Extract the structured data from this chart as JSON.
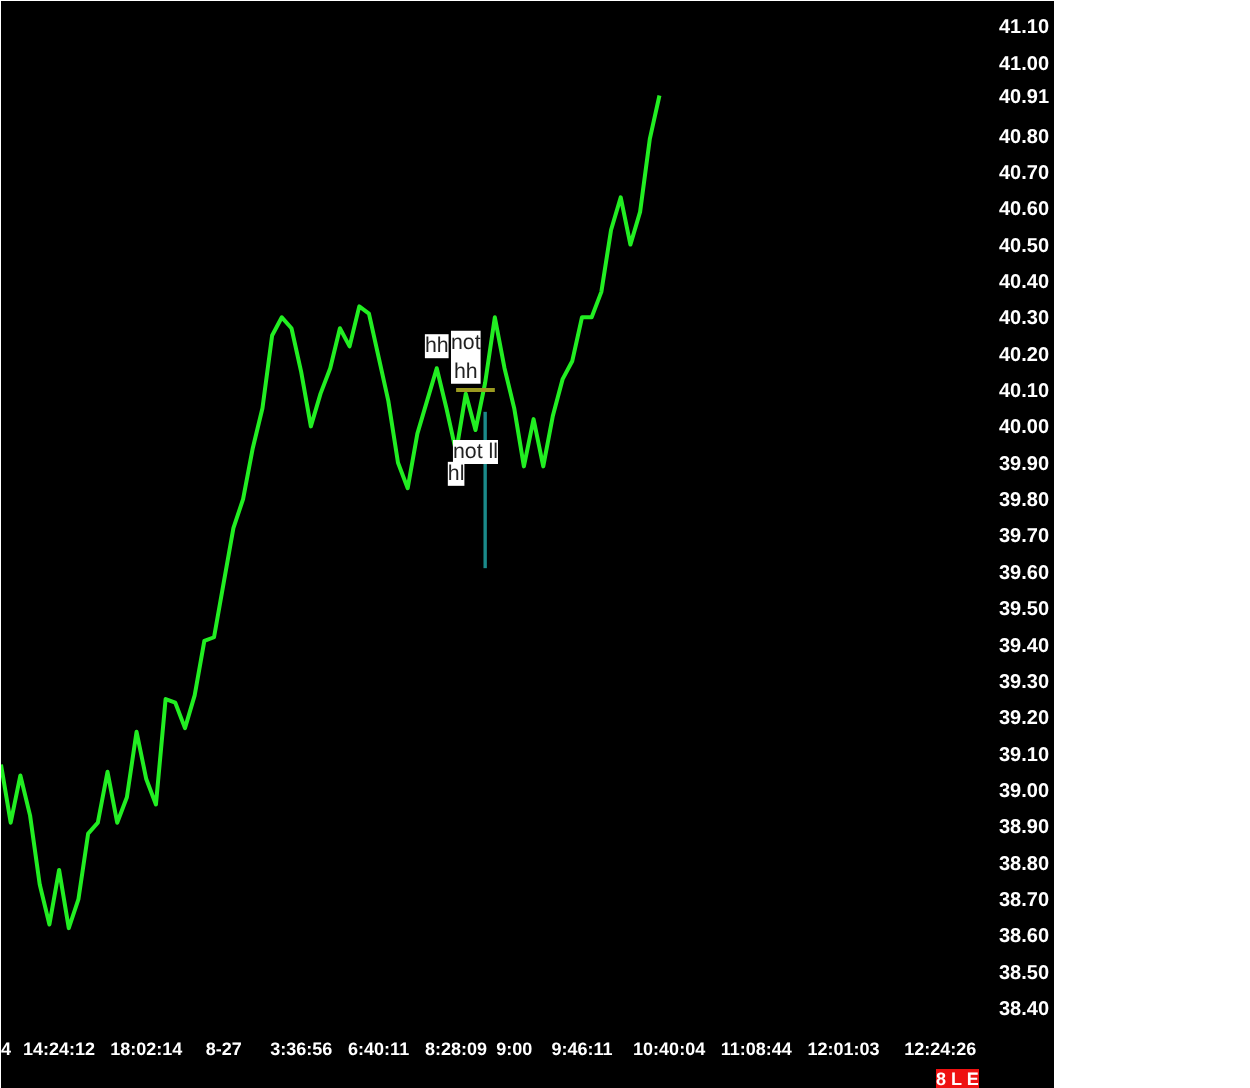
{
  "chart_data": {
    "type": "line",
    "categories": [
      "4",
      null,
      null,
      null,
      null,
      null,
      "14:24:12",
      null,
      null,
      null,
      null,
      null,
      null,
      null,
      null,
      "18:02:14",
      null,
      null,
      null,
      null,
      null,
      null,
      null,
      "8-27",
      null,
      null,
      null,
      null,
      null,
      null,
      null,
      "3:36:56",
      null,
      null,
      null,
      null,
      null,
      null,
      null,
      "6:40:11",
      null,
      null,
      null,
      null,
      null,
      null,
      null,
      "8:28:09",
      null,
      null,
      null,
      null,
      null,
      "9:00",
      null,
      null,
      null,
      null,
      null,
      null,
      "9:46:11",
      null,
      null,
      null,
      null,
      null,
      null,
      null,
      null,
      "10:40:04",
      null,
      null,
      null,
      null,
      null,
      null,
      null,
      null,
      "11:08:44",
      null,
      null,
      null,
      null,
      null,
      null,
      null,
      null,
      "12:01:03",
      null,
      null,
      null,
      null,
      null,
      null,
      null,
      null,
      null,
      "12:24:26",
      null,
      null,
      null
    ],
    "series": [
      {
        "color": "#22ee22",
        "values": [
          39.07,
          38.91,
          39.04,
          38.93,
          38.74,
          38.63,
          38.78,
          38.62,
          38.7,
          38.88,
          38.91,
          39.05,
          38.91,
          38.98,
          39.16,
          39.03,
          38.96,
          39.25,
          39.24,
          39.17,
          39.26,
          39.41,
          39.42,
          39.57,
          39.72,
          39.8,
          39.94,
          40.05,
          40.25,
          40.3,
          40.27,
          40.15,
          40.0,
          40.09,
          40.16,
          40.27,
          40.22,
          40.33,
          40.31,
          40.19,
          40.07,
          39.9,
          39.83,
          39.98,
          40.07,
          40.16,
          40.05,
          39.93,
          40.09,
          39.99,
          40.12,
          40.3,
          40.16,
          40.05,
          39.89,
          40.02,
          39.89,
          40.03,
          40.13,
          40.18,
          40.3,
          40.3,
          40.37,
          40.54,
          40.63,
          40.5,
          40.59,
          40.79,
          40.91,
          null,
          null,
          null,
          null,
          null,
          null,
          null,
          null,
          null,
          null,
          null,
          null,
          null,
          null,
          null,
          null,
          null,
          null,
          null,
          null,
          null,
          null,
          null,
          null,
          null,
          null,
          null,
          null,
          null,
          null,
          null,
          null
        ],
        "value_labels": [
          null,
          null,
          null,
          null,
          null,
          null,
          null,
          null,
          null,
          null,
          null,
          null,
          null,
          null,
          null,
          null,
          null,
          null,
          null,
          null,
          null,
          null,
          null,
          null,
          null,
          null,
          null,
          null,
          null,
          null,
          null,
          null,
          null,
          null,
          null,
          null,
          null,
          null,
          null,
          null,
          null,
          null,
          null,
          null,
          null,
          "hh",
          null,
          "hl",
          "not\nhh",
          "not ll",
          null,
          null,
          null,
          null,
          null,
          null,
          null,
          null,
          null,
          null,
          null,
          null,
          null,
          null,
          null,
          null,
          null,
          null,
          null,
          null,
          null,
          null,
          null,
          null,
          null,
          null,
          null,
          null,
          null,
          null,
          null,
          null,
          null,
          null,
          null,
          null,
          null,
          null,
          null,
          null,
          null,
          null,
          null,
          null,
          null,
          null,
          null,
          null,
          null,
          null,
          null
        ]
      },
      {
        "color": "#9a9a20",
        "values": [
          null,
          null,
          null,
          null,
          null,
          null,
          null,
          null,
          null,
          null,
          null,
          null,
          null,
          null,
          null,
          null,
          null,
          null,
          null,
          null,
          null,
          null,
          null,
          null,
          null,
          null,
          null,
          null,
          null,
          null,
          null,
          null,
          null,
          null,
          null,
          null,
          null,
          null,
          null,
          null,
          null,
          null,
          null,
          null,
          null,
          null,
          null,
          40.1,
          40.1,
          40.1,
          40.1,
          40.1,
          null,
          null,
          null,
          null,
          null,
          null,
          null,
          null,
          null,
          null,
          null,
          null,
          null,
          null,
          null,
          null,
          null,
          null,
          null,
          null,
          null,
          null,
          null,
          null,
          null,
          null,
          null,
          null,
          null,
          null,
          null,
          null,
          null,
          null,
          null,
          null,
          null,
          null,
          null,
          null,
          null,
          null,
          null,
          null,
          null,
          null,
          null,
          null,
          null
        ]
      },
      {
        "type": "bar",
        "color": "#1a8a8a",
        "values": [
          null,
          null,
          null,
          null,
          null,
          null,
          null,
          null,
          null,
          null,
          null,
          null,
          null,
          null,
          null,
          null,
          null,
          null,
          null,
          null,
          null,
          null,
          null,
          null,
          null,
          null,
          null,
          null,
          null,
          null,
          null,
          null,
          null,
          null,
          null,
          null,
          null,
          null,
          null,
          null,
          null,
          null,
          null,
          null,
          null,
          null,
          null,
          null,
          null,
          null,
          0.43,
          null,
          null,
          null,
          null,
          null,
          null,
          null,
          null,
          null,
          null,
          null,
          null,
          null,
          null,
          null,
          null,
          null,
          null,
          null,
          null,
          null,
          null,
          null,
          null,
          null,
          null,
          null,
          null,
          null,
          null,
          null,
          null,
          null,
          null,
          null,
          null,
          null,
          null,
          null,
          null,
          null,
          null,
          null,
          null,
          null,
          null,
          null,
          null,
          null,
          null
        ],
        "base": [
          null,
          null,
          null,
          null,
          null,
          null,
          null,
          null,
          null,
          null,
          null,
          null,
          null,
          null,
          null,
          null,
          null,
          null,
          null,
          null,
          null,
          null,
          null,
          null,
          null,
          null,
          null,
          null,
          null,
          null,
          null,
          null,
          null,
          null,
          null,
          null,
          null,
          null,
          null,
          null,
          null,
          null,
          null,
          null,
          null,
          null,
          null,
          null,
          null,
          null,
          39.61,
          null,
          null,
          null,
          null,
          null,
          null,
          null,
          null,
          null,
          null,
          null,
          null,
          null,
          null,
          null,
          null,
          null,
          null,
          null,
          null,
          null,
          null,
          null,
          null,
          null,
          null,
          null,
          null,
          null,
          null,
          null,
          null,
          null,
          null,
          null,
          null,
          null,
          null,
          null,
          null,
          null,
          null,
          null,
          null,
          null,
          null,
          null,
          null,
          null,
          null
        ]
      }
    ],
    "ylim": [
      38.37,
      41.17
    ],
    "yticks": [
      {
        "value": 38.4,
        "label": "38.40"
      },
      {
        "value": 38.5,
        "label": "38.50"
      },
      {
        "value": 38.6,
        "label": "38.60"
      },
      {
        "value": 38.7,
        "label": "38.70"
      },
      {
        "value": 38.8,
        "label": "38.80"
      },
      {
        "value": 38.9,
        "label": "38.90"
      },
      {
        "value": 39.0,
        "label": "39.00"
      },
      {
        "value": 39.1,
        "label": "39.10"
      },
      {
        "value": 39.2,
        "label": "39.20"
      },
      {
        "value": 39.3,
        "label": "39.30"
      },
      {
        "value": 39.4,
        "label": "39.40"
      },
      {
        "value": 39.5,
        "label": "39.50"
      },
      {
        "value": 39.6,
        "label": "39.60"
      },
      {
        "value": 39.7,
        "label": "39.70"
      },
      {
        "value": 39.8,
        "label": "39.80"
      },
      {
        "value": 39.9,
        "label": "39.90"
      },
      {
        "value": 40.0,
        "label": "40.00"
      },
      {
        "value": 40.1,
        "label": "40.10"
      },
      {
        "value": 40.2,
        "label": "40.20"
      },
      {
        "value": 40.3,
        "label": "40.30"
      },
      {
        "value": 40.4,
        "label": "40.40"
      },
      {
        "value": 40.5,
        "label": "40.50"
      },
      {
        "value": 40.6,
        "label": "40.60"
      },
      {
        "value": 40.7,
        "label": "40.70"
      },
      {
        "value": 40.8,
        "label": "40.80"
      },
      {
        "value": 40.91,
        "label": "40.91"
      },
      {
        "value": 41.0,
        "label": "41.00"
      },
      {
        "value": 41.1,
        "label": "41.10"
      }
    ],
    "annotations": [
      "8 L E"
    ],
    "grid": false
  }
}
